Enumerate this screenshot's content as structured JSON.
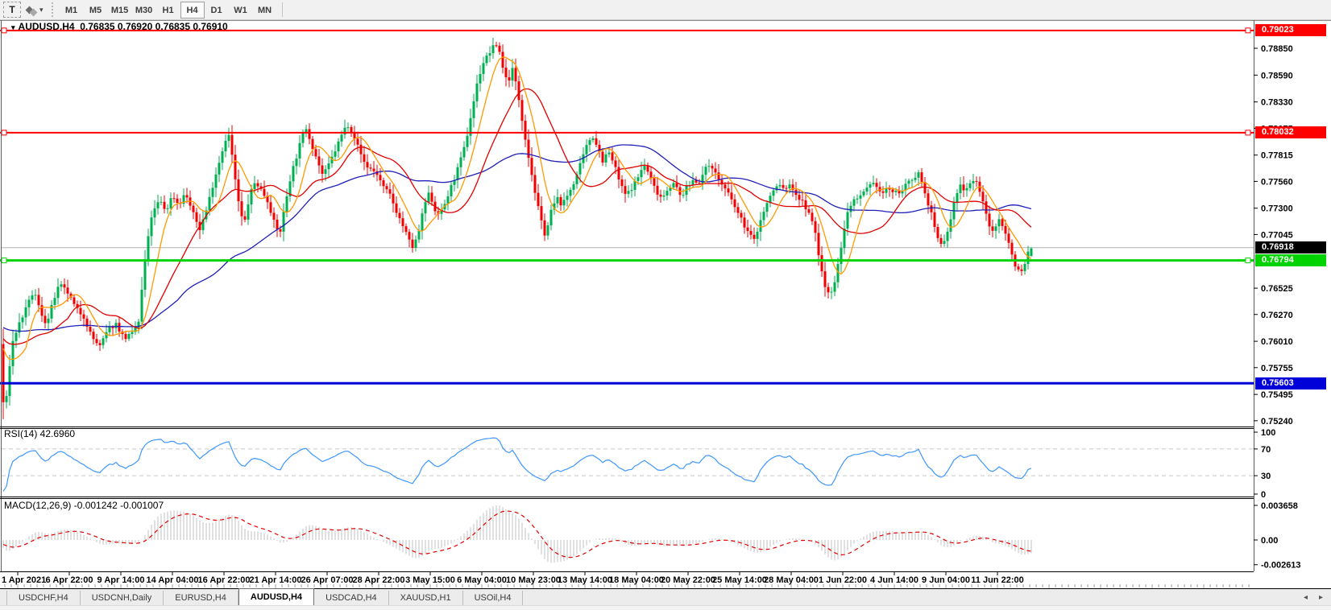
{
  "toolbar": {
    "text_tool_label": "T",
    "objects_caret": "▾",
    "timeframes": [
      "M1",
      "M5",
      "M15",
      "M30",
      "H1",
      "H4",
      "D1",
      "W1",
      "MN"
    ],
    "active_timeframe": "H4"
  },
  "chart": {
    "title_marker": "▾",
    "title_symbol": "AUDUSD,H4",
    "title_ohlc": "0.76835 0.76920 0.76835 0.76910"
  },
  "indicators": {
    "rsi": {
      "display": "RSI(14) 42.6960",
      "value": 42.696,
      "line_color": "#3e97ff",
      "levels": [
        70,
        30
      ],
      "ticks": [
        {
          "label": "100",
          "value": 100
        },
        {
          "label": "70",
          "value": 70
        },
        {
          "label": "30",
          "value": 30
        },
        {
          "label": "0",
          "value": 0
        }
      ]
    },
    "macd": {
      "display": "MACD(12,26,9) -0.001242 -0.001007",
      "macd_value": -0.001242,
      "signal_value": -0.001007,
      "histogram_color": "#c2c2c2",
      "signal_color": "#e00000",
      "ticks": [
        {
          "label": "0.003658",
          "value": 0.003658
        },
        {
          "label": "0.00",
          "value": 0
        },
        {
          "label": "-0.002613",
          "value": -0.002613
        }
      ]
    }
  },
  "tabs": {
    "items": [
      {
        "label": "USDCHF,H4"
      },
      {
        "label": "USDCNH,Daily"
      },
      {
        "label": "EURUSD,H4"
      },
      {
        "label": "AUDUSD,H4"
      },
      {
        "label": "USDCAD,H4"
      },
      {
        "label": "XAUUSD,H1"
      },
      {
        "label": "USOil,H4"
      }
    ],
    "active": "AUDUSD,H4",
    "scroll_left": "◂",
    "scroll_right": "▸"
  },
  "chart_data": {
    "type": "candlestick",
    "symbol": "AUDUSD",
    "timeframe": "H4",
    "last_bar": {
      "open": 0.76835,
      "high": 0.7692,
      "low": 0.76835,
      "close": 0.7691
    },
    "current_price": {
      "label": "0.76918",
      "price": 0.76918,
      "color": "#000000"
    },
    "price_axis_ticks": [
      "0.78850",
      "0.78590",
      "0.78330",
      "0.78075",
      "0.77815",
      "0.77560",
      "0.77300",
      "0.77045",
      "0.76525",
      "0.76270",
      "0.76010",
      "0.75755",
      "0.75495",
      "0.75240"
    ],
    "horizontal_lines": [
      {
        "label": "0.79023",
        "price": 0.79023,
        "color": "#ff0000",
        "width": 2
      },
      {
        "label": "0.78032",
        "price": 0.78032,
        "color": "#ff0000",
        "width": 2
      },
      {
        "label": "0.76794",
        "price": 0.76794,
        "color": "#00d300",
        "width": 3
      },
      {
        "label": "0.75603",
        "price": 0.75603,
        "color": "#0000d8",
        "width": 3
      }
    ],
    "x_labels": [
      "1 Apr 2021",
      "6 Apr 22:00",
      "9 Apr 14:00",
      "14 Apr 04:00",
      "16 Apr 22:00",
      "21 Apr 14:00",
      "26 Apr 07:00",
      "28 Apr 22:00",
      "3 May 15:00",
      "6 May 04:00",
      "10 May 23:00",
      "13 May 14:00",
      "18 May 04:00",
      "20 May 22:00",
      "25 May 14:00",
      "28 May 04:00",
      "1 Jun 22:00",
      "4 Jun 14:00",
      "9 Jun 04:00",
      "11 Jun 22:00"
    ],
    "candle_colors": {
      "up": "#00b050",
      "down": "#f40000"
    },
    "ma_colors": {
      "fast": "#ff9900",
      "mid": "#e00000",
      "slow": "#2020b8"
    },
    "ma_periods": {
      "fast": 8,
      "mid": 21,
      "slow": 55
    },
    "price_range_top": 0.79123,
    "price_range_bottom": 0.75205,
    "price_path_anchors": [
      [
        -240,
        0.7632
      ],
      [
        -120,
        0.7618
      ],
      [
        -30,
        0.7606
      ],
      [
        0,
        0.7598
      ],
      [
        5,
        0.7528
      ],
      [
        9,
        0.7552
      ],
      [
        14,
        0.7596
      ],
      [
        22,
        0.7615
      ],
      [
        32,
        0.7632
      ],
      [
        42,
        0.765
      ],
      [
        50,
        0.763
      ],
      [
        58,
        0.7617
      ],
      [
        66,
        0.764
      ],
      [
        74,
        0.7656
      ],
      [
        84,
        0.7648
      ],
      [
        94,
        0.7633
      ],
      [
        104,
        0.7625
      ],
      [
        114,
        0.7605
      ],
      [
        124,
        0.7596
      ],
      [
        134,
        0.7612
      ],
      [
        144,
        0.7618
      ],
      [
        154,
        0.7604
      ],
      [
        164,
        0.7608
      ],
      [
        172,
        0.762
      ],
      [
        180,
        0.768
      ],
      [
        188,
        0.7722
      ],
      [
        198,
        0.7738
      ],
      [
        206,
        0.7727
      ],
      [
        214,
        0.7743
      ],
      [
        222,
        0.7733
      ],
      [
        230,
        0.7745
      ],
      [
        240,
        0.7724
      ],
      [
        248,
        0.771
      ],
      [
        256,
        0.7728
      ],
      [
        264,
        0.7752
      ],
      [
        272,
        0.7775
      ],
      [
        280,
        0.7797
      ],
      [
        285,
        0.7801
      ],
      [
        291,
        0.7762
      ],
      [
        298,
        0.7726
      ],
      [
        303,
        0.7714
      ],
      [
        310,
        0.7743
      ],
      [
        317,
        0.7756
      ],
      [
        325,
        0.7747
      ],
      [
        333,
        0.7736
      ],
      [
        341,
        0.7714
      ],
      [
        347,
        0.7704
      ],
      [
        354,
        0.7734
      ],
      [
        361,
        0.7762
      ],
      [
        368,
        0.778
      ],
      [
        375,
        0.78
      ],
      [
        380,
        0.7808
      ],
      [
        386,
        0.7794
      ],
      [
        394,
        0.7776
      ],
      [
        401,
        0.7761
      ],
      [
        408,
        0.7772
      ],
      [
        416,
        0.7786
      ],
      [
        424,
        0.7801
      ],
      [
        431,
        0.7812
      ],
      [
        438,
        0.7803
      ],
      [
        446,
        0.7786
      ],
      [
        454,
        0.7771
      ],
      [
        461,
        0.7768
      ],
      [
        468,
        0.7763
      ],
      [
        476,
        0.775
      ],
      [
        484,
        0.7743
      ],
      [
        492,
        0.7727
      ],
      [
        500,
        0.7713
      ],
      [
        508,
        0.7698
      ],
      [
        513,
        0.7691
      ],
      [
        520,
        0.7708
      ],
      [
        527,
        0.7734
      ],
      [
        533,
        0.7745
      ],
      [
        540,
        0.7728
      ],
      [
        547,
        0.7725
      ],
      [
        554,
        0.7738
      ],
      [
        562,
        0.7755
      ],
      [
        570,
        0.7772
      ],
      [
        578,
        0.7793
      ],
      [
        585,
        0.7822
      ],
      [
        592,
        0.785
      ],
      [
        599,
        0.787
      ],
      [
        606,
        0.7879
      ],
      [
        613,
        0.7887
      ],
      [
        618,
        0.7889
      ],
      [
        624,
        0.7867
      ],
      [
        630,
        0.7851
      ],
      [
        636,
        0.7865
      ],
      [
        642,
        0.7845
      ],
      [
        649,
        0.7812
      ],
      [
        656,
        0.778
      ],
      [
        663,
        0.775
      ],
      [
        670,
        0.7722
      ],
      [
        677,
        0.7703
      ],
      [
        684,
        0.7727
      ],
      [
        691,
        0.774
      ],
      [
        698,
        0.7733
      ],
      [
        706,
        0.7745
      ],
      [
        714,
        0.7758
      ],
      [
        722,
        0.7776
      ],
      [
        729,
        0.7792
      ],
      [
        735,
        0.7801
      ],
      [
        741,
        0.7791
      ],
      [
        748,
        0.7776
      ],
      [
        755,
        0.7785
      ],
      [
        762,
        0.7773
      ],
      [
        770,
        0.7753
      ],
      [
        777,
        0.7742
      ],
      [
        784,
        0.775
      ],
      [
        792,
        0.776
      ],
      [
        799,
        0.7773
      ],
      [
        806,
        0.7762
      ],
      [
        814,
        0.7747
      ],
      [
        822,
        0.774
      ],
      [
        830,
        0.7751
      ],
      [
        837,
        0.7754
      ],
      [
        845,
        0.7741
      ],
      [
        852,
        0.7749
      ],
      [
        860,
        0.7757
      ],
      [
        868,
        0.7756
      ],
      [
        876,
        0.7768
      ],
      [
        882,
        0.7774
      ],
      [
        890,
        0.776
      ],
      [
        898,
        0.7751
      ],
      [
        906,
        0.7741
      ],
      [
        914,
        0.7728
      ],
      [
        922,
        0.7716
      ],
      [
        930,
        0.7705
      ],
      [
        936,
        0.7699
      ],
      [
        943,
        0.7716
      ],
      [
        950,
        0.7731
      ],
      [
        958,
        0.7745
      ],
      [
        966,
        0.7753
      ],
      [
        974,
        0.7749
      ],
      [
        982,
        0.7752
      ],
      [
        990,
        0.7741
      ],
      [
        998,
        0.7734
      ],
      [
        1006,
        0.7721
      ],
      [
        1012,
        0.7706
      ],
      [
        1018,
        0.7675
      ],
      [
        1024,
        0.7654
      ],
      [
        1030,
        0.7647
      ],
      [
        1037,
        0.7661
      ],
      [
        1044,
        0.7693
      ],
      [
        1051,
        0.7723
      ],
      [
        1058,
        0.7738
      ],
      [
        1065,
        0.7737
      ],
      [
        1072,
        0.7745
      ],
      [
        1080,
        0.7751
      ],
      [
        1087,
        0.7754
      ],
      [
        1094,
        0.7743
      ],
      [
        1102,
        0.775
      ],
      [
        1110,
        0.7744
      ],
      [
        1118,
        0.7747
      ],
      [
        1126,
        0.7753
      ],
      [
        1134,
        0.776
      ],
      [
        1141,
        0.7765
      ],
      [
        1148,
        0.7744
      ],
      [
        1155,
        0.7728
      ],
      [
        1162,
        0.7703
      ],
      [
        1169,
        0.7694
      ],
      [
        1176,
        0.7706
      ],
      [
        1184,
        0.7734
      ],
      [
        1191,
        0.7753
      ],
      [
        1198,
        0.7748
      ],
      [
        1205,
        0.7756
      ],
      [
        1212,
        0.7757
      ],
      [
        1219,
        0.7738
      ],
      [
        1226,
        0.7718
      ],
      [
        1233,
        0.7704
      ],
      [
        1239,
        0.772
      ],
      [
        1246,
        0.7712
      ],
      [
        1253,
        0.7693
      ],
      [
        1260,
        0.7675
      ],
      [
        1267,
        0.7667
      ],
      [
        1273,
        0.7679
      ],
      [
        1278,
        0.76918
      ]
    ]
  }
}
